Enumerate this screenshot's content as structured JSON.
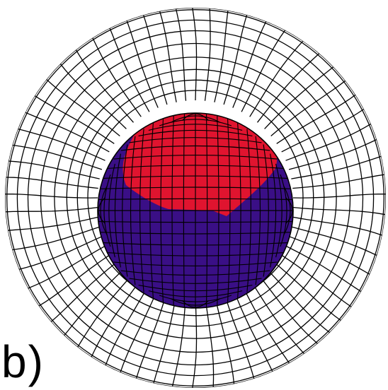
{
  "figure": {
    "panel_label": "b)",
    "colors": {
      "background": "#ffffff",
      "outer_mesh_line": "#000000",
      "sphere_lower": "#3a0f86",
      "sphere_upper": "#e0142f",
      "sphere_mesh_line": "#000000"
    }
  }
}
